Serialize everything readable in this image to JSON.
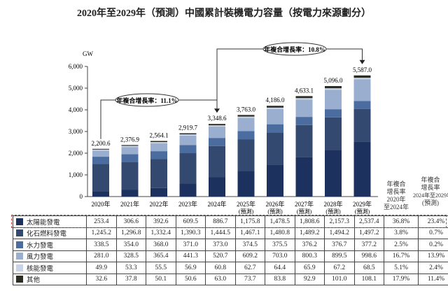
{
  "chart_data": {
    "type": "bar",
    "stacked": true,
    "title": "2020年至2029年（預測）中國累計裝機電力容量（按電力來源劃分）",
    "ylabel": "GW",
    "ylim": [
      0,
      6000
    ],
    "yticks": [
      "0",
      "1,000",
      "2,000",
      "3,000",
      "4,000",
      "5,000",
      "6,000"
    ],
    "categories": [
      [
        "2020年",
        ""
      ],
      [
        "2021年",
        ""
      ],
      [
        "2022年",
        ""
      ],
      [
        "2023年",
        ""
      ],
      [
        "2024年",
        ""
      ],
      [
        "2025年",
        "(預測)"
      ],
      [
        "2026年",
        "(預測)"
      ],
      [
        "2027年",
        "(預測)"
      ],
      [
        "2028年",
        "(預測)"
      ],
      [
        "2029年",
        "(預測)"
      ]
    ],
    "totals": [
      "2,200.6",
      "2,376.9",
      "2,564.1",
      "2,919.7",
      "3,348.6",
      "3,763.0",
      "4,186.0",
      "4,633.1",
      "5,096.0",
      "5,587.0"
    ],
    "series": [
      {
        "name": "太陽能發電",
        "color": "#1c315e",
        "values": [
          253.4,
          306.6,
          392.6,
          609.5,
          886.7,
          1175.8,
          1478.5,
          1808.6,
          2157.3,
          2537.4
        ],
        "labels": [
          "253.4",
          "306.6",
          "392.6",
          "609.5",
          "886.7",
          "1,175.8",
          "1,478.5",
          "1,808.6",
          "2,157.3",
          "2,537.4"
        ],
        "cagr": [
          "36.8%",
          "23.4%"
        ]
      },
      {
        "name": "化石燃料發電",
        "color": "#34496f",
        "values": [
          1245.2,
          1296.8,
          1332.4,
          1390.3,
          1444.5,
          1467.1,
          1480.8,
          1489.2,
          1494.2,
          1497.2
        ],
        "labels": [
          "1,245.2",
          "1,296.8",
          "1,332.4",
          "1,390.3",
          "1,444.5",
          "1,467.1",
          "1,480.8",
          "1,489.2",
          "1,494.2",
          "1,497.2"
        ],
        "cagr": [
          "3.8%",
          "0.7%"
        ]
      },
      {
        "name": "水力發電",
        "color": "#4b6c9e",
        "values": [
          338.5,
          354.0,
          368.0,
          371.0,
          373.0,
          374.5,
          375.5,
          376.2,
          376.7,
          377.2
        ],
        "labels": [
          "338.5",
          "354.0",
          "368.0",
          "371.0",
          "373.0",
          "374.5",
          "375.5",
          "376.2",
          "376.7",
          "377.2"
        ],
        "cagr": [
          "2.5%",
          "0.2%"
        ]
      },
      {
        "name": "風力發電",
        "color": "#9aafcf",
        "values": [
          281.0,
          328.5,
          365.4,
          441.3,
          520.7,
          609.2,
          703.0,
          800.3,
          899.5,
          998.6
        ],
        "labels": [
          "281.0",
          "328.5",
          "365.4",
          "441.3",
          "520.7",
          "609.2",
          "703.0",
          "800.3",
          "899.5",
          "998.6"
        ],
        "cagr": [
          "16.7%",
          "13.9%"
        ]
      },
      {
        "name": "核能發電",
        "color": "#c8d4e6",
        "values": [
          49.9,
          53.3,
          55.5,
          56.9,
          60.8,
          62.7,
          64.4,
          65.9,
          67.2,
          68.5
        ],
        "labels": [
          "49.9",
          "53.3",
          "55.5",
          "56.9",
          "60.8",
          "62.7",
          "64.4",
          "65.9",
          "67.2",
          "68.5"
        ],
        "cagr": [
          "5.1%",
          "2.4%"
        ]
      },
      {
        "name": "其他",
        "color": "#2c2c22",
        "values": [
          32.6,
          37.8,
          50.1,
          50.6,
          63.0,
          73.7,
          83.8,
          92.9,
          101.0,
          108.1
        ],
        "labels": [
          "32.6",
          "37.8",
          "50.1",
          "50.6",
          "63.0",
          "73.7",
          "83.8",
          "92.9",
          "101.0",
          "108.1"
        ],
        "cagr": [
          "17.9%",
          "11.4%"
        ]
      }
    ],
    "cagr_headers": [
      [
        "年複合",
        "增長率",
        "2020年",
        "至2024年"
      ],
      [
        "年複合",
        "增長率",
        "2024年至2029年",
        "(預測)"
      ]
    ],
    "annotations": [
      "年複合增長率：11.1%",
      "年複合增長率：10.8%"
    ]
  }
}
